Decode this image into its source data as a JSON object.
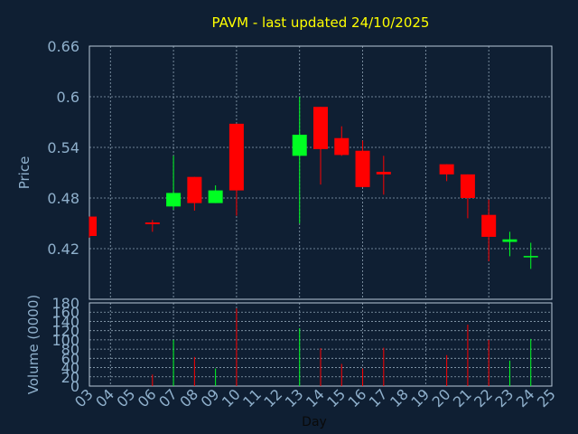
{
  "chart_data": {
    "type": "candlestick",
    "title": "PAVM - last updated 24/10/2025",
    "xlabel": "Day",
    "price_ylabel": "Price",
    "volume_ylabel": "Volume (0000)",
    "price_ylim": [
      0.36,
      0.66
    ],
    "price_ticks": [
      "0.66",
      "0.6",
      "0.54",
      "0.48",
      "0.42"
    ],
    "volume_ylim": [
      0,
      180
    ],
    "volume_ticks": [
      "180",
      "160",
      "140",
      "120",
      "100",
      "80",
      "60",
      "40",
      "20",
      "0"
    ],
    "x_ticks": [
      "03",
      "04",
      "05",
      "06",
      "07",
      "08",
      "09",
      "10",
      "11",
      "12",
      "13",
      "14",
      "15",
      "16",
      "17",
      "18",
      "19",
      "20",
      "21",
      "22",
      "23",
      "24",
      "25"
    ],
    "x_range": [
      3,
      25
    ],
    "grid": true,
    "colors": {
      "background": "#0f1f33",
      "up": "#00ff22",
      "down": "#ff0000",
      "title": "#ffff00",
      "axis_text": "#8fb0cc",
      "grid": "#8fa3b5",
      "frame": "#b8c8d8"
    },
    "candles": [
      {
        "day": 3,
        "open": 0.458,
        "high": 0.458,
        "low": 0.433,
        "close": 0.435
      },
      {
        "day": 6,
        "open": 0.451,
        "high": 0.454,
        "low": 0.44,
        "close": 0.449
      },
      {
        "day": 7,
        "open": 0.47,
        "high": 0.53,
        "low": 0.466,
        "close": 0.486
      },
      {
        "day": 8,
        "open": 0.505,
        "high": 0.505,
        "low": 0.465,
        "close": 0.474
      },
      {
        "day": 9,
        "open": 0.474,
        "high": 0.495,
        "low": 0.474,
        "close": 0.489
      },
      {
        "day": 10,
        "open": 0.568,
        "high": 0.568,
        "low": 0.459,
        "close": 0.489
      },
      {
        "day": 13,
        "open": 0.53,
        "high": 0.6,
        "low": 0.45,
        "close": 0.555
      },
      {
        "day": 14,
        "open": 0.588,
        "high": 0.588,
        "low": 0.496,
        "close": 0.538
      },
      {
        "day": 15,
        "open": 0.551,
        "high": 0.565,
        "low": 0.53,
        "close": 0.531
      },
      {
        "day": 16,
        "open": 0.536,
        "high": 0.548,
        "low": 0.493,
        "close": 0.493
      },
      {
        "day": 17,
        "open": 0.511,
        "high": 0.53,
        "low": 0.484,
        "close": 0.508
      },
      {
        "day": 20,
        "open": 0.52,
        "high": 0.52,
        "low": 0.5,
        "close": 0.508
      },
      {
        "day": 21,
        "open": 0.508,
        "high": 0.508,
        "low": 0.456,
        "close": 0.48
      },
      {
        "day": 22,
        "open": 0.46,
        "high": 0.478,
        "low": 0.405,
        "close": 0.434
      },
      {
        "day": 23,
        "open": 0.428,
        "high": 0.44,
        "low": 0.411,
        "close": 0.431
      },
      {
        "day": 24,
        "open": 0.41,
        "high": 0.427,
        "low": 0.396,
        "close": 0.411
      }
    ],
    "volume": [
      {
        "day": 6,
        "value": 25,
        "dir": "down"
      },
      {
        "day": 7,
        "value": 100,
        "dir": "up"
      },
      {
        "day": 8,
        "value": 63,
        "dir": "down"
      },
      {
        "day": 9,
        "value": 38,
        "dir": "up"
      },
      {
        "day": 10,
        "value": 168,
        "dir": "down"
      },
      {
        "day": 13,
        "value": 125,
        "dir": "up"
      },
      {
        "day": 14,
        "value": 82,
        "dir": "down"
      },
      {
        "day": 15,
        "value": 48,
        "dir": "down"
      },
      {
        "day": 16,
        "value": 38,
        "dir": "down"
      },
      {
        "day": 17,
        "value": 83,
        "dir": "down"
      },
      {
        "day": 20,
        "value": 67,
        "dir": "down"
      },
      {
        "day": 21,
        "value": 133,
        "dir": "down"
      },
      {
        "day": 22,
        "value": 100,
        "dir": "down"
      },
      {
        "day": 23,
        "value": 55,
        "dir": "up"
      },
      {
        "day": 24,
        "value": 102,
        "dir": "up"
      }
    ]
  }
}
